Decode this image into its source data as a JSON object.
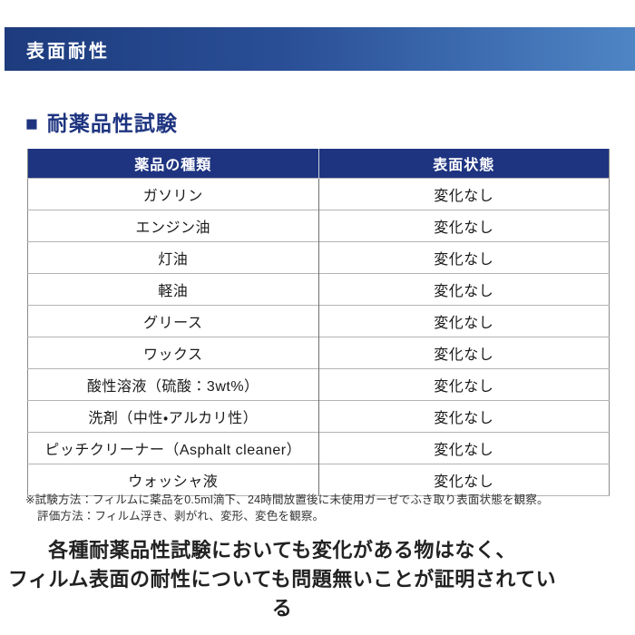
{
  "banner": {
    "title": "表面耐性"
  },
  "section": {
    "marker": "■",
    "heading": "耐薬品性試験"
  },
  "table": {
    "columns": [
      "薬品の種類",
      "表面状態"
    ],
    "rows": [
      {
        "chemical": "ガソリン",
        "result": "変化なし"
      },
      {
        "chemical": "エンジン油",
        "result": "変化なし"
      },
      {
        "chemical": "灯油",
        "result": "変化なし"
      },
      {
        "chemical": "軽油",
        "result": "変化なし"
      },
      {
        "chemical": "グリース",
        "result": "変化なし"
      },
      {
        "chemical": "ワックス",
        "result": "変化なし"
      },
      {
        "chemical": "酸性溶液（硫酸：3wt%）",
        "result": "変化なし"
      },
      {
        "chemical": "洗剤（中性・アルカリ性）",
        "result": "変化なし"
      },
      {
        "chemical": "ピッチクリーナー（Asphalt cleaner）",
        "result": "変化なし"
      },
      {
        "chemical": "ウォッシャ液",
        "result": "変化なし"
      }
    ]
  },
  "footnote": {
    "line1": "※試験方法：フィルムに薬品を0.5ml滴下、24時間放置後に未使用ガーゼでふき取り表面状態を観察。",
    "line2": "評価方法：フィルム浮き、剥がれ、変形、変色を観察。"
  },
  "conclusion": {
    "line1": "各種耐薬品性試験においても変化がある物はなく、",
    "line2": "フィルム表面の耐性についても問題無いことが証明されている"
  },
  "colors": {
    "banner_gradient_start": "#1d3b7d",
    "banner_gradient_end": "#4e85c5",
    "header_navy": "#1e3480",
    "row_border_gray": "#b3b3b3",
    "column_divider_gray": "#707070",
    "text_black": "#1a1a1a"
  }
}
